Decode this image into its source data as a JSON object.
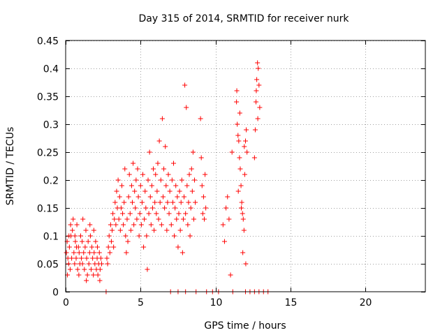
{
  "chart_data": {
    "type": "scatter",
    "title": "Day 315 of 2014, SRMTID for receiver nurk",
    "xlabel": "GPS time / hours",
    "ylabel": "SRMTID / TECUs",
    "xlim": [
      0,
      24
    ],
    "ylim": [
      0,
      0.45
    ],
    "x_ticks": [
      0,
      5,
      10,
      15,
      20
    ],
    "x_tick_labels": [
      "0",
      "5",
      "10",
      "15",
      "20"
    ],
    "y_ticks": [
      0,
      0.05,
      0.1,
      0.15,
      0.2,
      0.25,
      0.3,
      0.35,
      0.4,
      0.45
    ],
    "y_tick_labels": [
      "0",
      "0.05",
      "0.1",
      "0.15",
      "0.2",
      "0.25",
      "0.3",
      "0.35",
      "0.4",
      "0.45"
    ],
    "grid": true,
    "marker": "+",
    "series": [
      {
        "name": "SRMTID",
        "color": "#ff0000",
        "points": [
          [
            0.05,
            0.07
          ],
          [
            0.1,
            0.09
          ],
          [
            0.15,
            0.06
          ],
          [
            0.2,
            0.05
          ],
          [
            0.25,
            0.08
          ],
          [
            0.3,
            0.04
          ],
          [
            0.35,
            0.1
          ],
          [
            0.4,
            0.06
          ],
          [
            0.45,
            0.11
          ],
          [
            0.5,
            0.13
          ],
          [
            0.55,
            0.07
          ],
          [
            0.6,
            0.05
          ],
          [
            0.65,
            0.09
          ],
          [
            0.7,
            0.06
          ],
          [
            0.75,
            0.12
          ],
          [
            0.8,
            0.04
          ],
          [
            0.85,
            0.08
          ],
          [
            0.9,
            0.07
          ],
          [
            0.95,
            0.05
          ],
          [
            1.0,
            0.1
          ],
          [
            1.05,
            0.06
          ],
          [
            1.1,
            0.09
          ],
          [
            1.15,
            0.13
          ],
          [
            1.2,
            0.07
          ],
          [
            1.25,
            0.04
          ],
          [
            1.3,
            0.08
          ],
          [
            1.35,
            0.11
          ],
          [
            1.4,
            0.06
          ],
          [
            1.45,
            0.03
          ],
          [
            1.5,
            0.09
          ],
          [
            1.55,
            0.05
          ],
          [
            1.6,
            0.07
          ],
          [
            1.65,
            0.1
          ],
          [
            1.7,
            0.04
          ],
          [
            1.75,
            0.08
          ],
          [
            1.8,
            0.06
          ],
          [
            1.85,
            0.03
          ],
          [
            1.9,
            0.07
          ],
          [
            1.95,
            0.05
          ],
          [
            2.0,
            0.09
          ],
          [
            2.05,
            0.04
          ],
          [
            2.1,
            0.06
          ],
          [
            2.15,
            0.03
          ],
          [
            2.2,
            0.05
          ],
          [
            2.25,
            0.07
          ],
          [
            2.3,
            0.04
          ],
          [
            2.35,
            0.06
          ],
          [
            2.4,
            0.05
          ],
          [
            0.12,
            0.03
          ],
          [
            0.33,
            0.12
          ],
          [
            0.62,
            0.1
          ],
          [
            0.88,
            0.03
          ],
          [
            1.12,
            0.05
          ],
          [
            1.38,
            0.02
          ],
          [
            1.62,
            0.12
          ],
          [
            1.88,
            0.11
          ],
          [
            2.12,
            0.08
          ],
          [
            2.28,
            0.02
          ],
          [
            0.22,
            0.1
          ],
          [
            0.72,
            0.08
          ],
          [
            2.7,
            0.0
          ],
          [
            2.75,
            0.06
          ],
          [
            2.8,
            0.05
          ],
          [
            2.85,
            0.08
          ],
          [
            2.9,
            0.1
          ],
          [
            2.95,
            0.07
          ],
          [
            3.0,
            0.12
          ],
          [
            3.05,
            0.09
          ],
          [
            3.1,
            0.11
          ],
          [
            3.15,
            0.14
          ],
          [
            3.2,
            0.08
          ],
          [
            3.25,
            0.13
          ],
          [
            3.3,
            0.16
          ],
          [
            3.35,
            0.12
          ],
          [
            3.4,
            0.18
          ],
          [
            3.45,
            0.15
          ],
          [
            3.5,
            0.2
          ],
          [
            3.55,
            0.13
          ],
          [
            3.6,
            0.17
          ],
          [
            3.65,
            0.11
          ],
          [
            3.7,
            0.15
          ],
          [
            3.75,
            0.19
          ],
          [
            3.8,
            0.14
          ],
          [
            3.85,
            0.12
          ],
          [
            3.9,
            0.16
          ],
          [
            3.95,
            0.22
          ],
          [
            4.0,
            0.1
          ],
          [
            4.05,
            0.07
          ],
          [
            4.1,
            0.13
          ],
          [
            4.15,
            0.09
          ],
          [
            4.2,
            0.17
          ],
          [
            4.25,
            0.21
          ],
          [
            4.3,
            0.14
          ],
          [
            4.35,
            0.11
          ],
          [
            4.4,
            0.19
          ],
          [
            4.45,
            0.16
          ],
          [
            4.5,
            0.23
          ],
          [
            4.55,
            0.12
          ],
          [
            4.6,
            0.18
          ],
          [
            4.65,
            0.15
          ],
          [
            4.7,
            0.2
          ],
          [
            4.75,
            0.13
          ],
          [
            4.8,
            0.22
          ],
          [
            4.85,
            0.17
          ],
          [
            4.9,
            0.1
          ],
          [
            4.95,
            0.14
          ],
          [
            5.0,
            0.19
          ],
          [
            5.05,
            0.12
          ],
          [
            5.1,
            0.16
          ],
          [
            5.15,
            0.21
          ],
          [
            5.2,
            0.08
          ],
          [
            5.25,
            0.13
          ],
          [
            5.3,
            0.18
          ],
          [
            5.35,
            0.15
          ],
          [
            5.4,
            0.1
          ],
          [
            5.45,
            0.04
          ],
          [
            5.5,
            0.2
          ],
          [
            5.55,
            0.14
          ],
          [
            5.6,
            0.25
          ],
          [
            5.65,
            0.17
          ],
          [
            5.7,
            0.12
          ],
          [
            5.75,
            0.19
          ],
          [
            5.8,
            0.15
          ],
          [
            5.85,
            0.22
          ],
          [
            5.9,
            0.11
          ],
          [
            5.95,
            0.16
          ],
          [
            6.0,
            0.21
          ],
          [
            6.05,
            0.14
          ],
          [
            6.1,
            0.18
          ],
          [
            6.15,
            0.23
          ],
          [
            6.2,
            0.13
          ],
          [
            6.25,
            0.27
          ],
          [
            6.3,
            0.16
          ],
          [
            6.35,
            0.2
          ],
          [
            6.4,
            0.12
          ],
          [
            6.45,
            0.31
          ],
          [
            6.5,
            0.17
          ],
          [
            6.55,
            0.22
          ],
          [
            6.6,
            0.15
          ],
          [
            6.65,
            0.26
          ],
          [
            6.7,
            0.19
          ],
          [
            6.75,
            0.11
          ],
          [
            6.8,
            0.16
          ],
          [
            6.85,
            0.21
          ],
          [
            6.9,
            0.14
          ],
          [
            6.95,
            0.18
          ],
          [
            7.0,
            0.0
          ],
          [
            7.05,
            0.12
          ],
          [
            7.1,
            0.2
          ],
          [
            7.15,
            0.16
          ],
          [
            7.2,
            0.23
          ],
          [
            7.25,
            0.1
          ],
          [
            7.3,
            0.15
          ],
          [
            7.35,
            0.19
          ],
          [
            7.4,
            0.13
          ],
          [
            7.45,
            0.17
          ],
          [
            7.5,
            0.08
          ],
          [
            7.55,
            0.14
          ],
          [
            7.6,
            0.18
          ],
          [
            7.65,
            0.11
          ],
          [
            7.7,
            0.16
          ],
          [
            7.75,
            0.2
          ],
          [
            7.8,
            0.07
          ],
          [
            7.85,
            0.13
          ],
          [
            7.9,
            0.17
          ],
          [
            7.95,
            0.37
          ],
          [
            8.0,
            0.14
          ],
          [
            8.05,
            0.33
          ],
          [
            8.1,
            0.19
          ],
          [
            8.15,
            0.12
          ],
          [
            8.2,
            0.16
          ],
          [
            8.25,
            0.21
          ],
          [
            8.3,
            0.1
          ],
          [
            8.35,
            0.15
          ],
          [
            8.4,
            0.22
          ],
          [
            8.45,
            0.18
          ],
          [
            8.5,
            0.25
          ],
          [
            8.55,
            0.13
          ],
          [
            8.6,
            0.2
          ],
          [
            8.65,
            0.16
          ],
          [
            8.7,
            0.0
          ],
          [
            9.0,
            0.31
          ],
          [
            9.05,
            0.24
          ],
          [
            9.1,
            0.19
          ],
          [
            9.15,
            0.14
          ],
          [
            9.2,
            0.17
          ],
          [
            9.25,
            0.13
          ],
          [
            9.3,
            0.21
          ],
          [
            9.35,
            0.15
          ],
          [
            9.4,
            0.0
          ],
          [
            10.5,
            0.12
          ],
          [
            10.6,
            0.09
          ],
          [
            10.7,
            0.15
          ],
          [
            10.8,
            0.17
          ],
          [
            10.9,
            0.13
          ],
          [
            11.0,
            0.03
          ],
          [
            11.1,
            0.25
          ],
          [
            11.15,
            0.0
          ],
          [
            11.4,
            0.34
          ],
          [
            11.45,
            0.3
          ],
          [
            11.5,
            0.28
          ],
          [
            11.55,
            0.27
          ],
          [
            11.6,
            0.24
          ],
          [
            11.65,
            0.22
          ],
          [
            11.7,
            0.19
          ],
          [
            11.75,
            0.16
          ],
          [
            11.8,
            0.14
          ],
          [
            11.85,
            0.13
          ],
          [
            11.9,
            0.11
          ],
          [
            11.95,
            0.21
          ],
          [
            12.0,
            0.27
          ],
          [
            12.05,
            0.29
          ],
          [
            12.1,
            0.25
          ],
          [
            11.42,
            0.36
          ],
          [
            11.52,
            0.18
          ],
          [
            11.62,
            0.32
          ],
          [
            11.72,
            0.15
          ],
          [
            11.82,
            0.07
          ],
          [
            11.92,
            0.26
          ],
          [
            12.02,
            0.05
          ],
          [
            12.6,
            0.24
          ],
          [
            12.65,
            0.29
          ],
          [
            12.7,
            0.34
          ],
          [
            12.75,
            0.38
          ],
          [
            12.8,
            0.41
          ],
          [
            12.85,
            0.4
          ],
          [
            12.9,
            0.37
          ],
          [
            12.95,
            0.33
          ],
          [
            12.82,
            0.31
          ],
          [
            12.72,
            0.36
          ],
          [
            12.0,
            0.0
          ],
          [
            12.3,
            0.0
          ],
          [
            12.6,
            0.0
          ],
          [
            12.9,
            0.0
          ],
          [
            13.2,
            0.0
          ],
          [
            13.5,
            0.0
          ],
          [
            9.8,
            0.0
          ],
          [
            10.2,
            0.0
          ],
          [
            8.0,
            0.0
          ],
          [
            7.5,
            0.0
          ]
        ]
      }
    ]
  }
}
